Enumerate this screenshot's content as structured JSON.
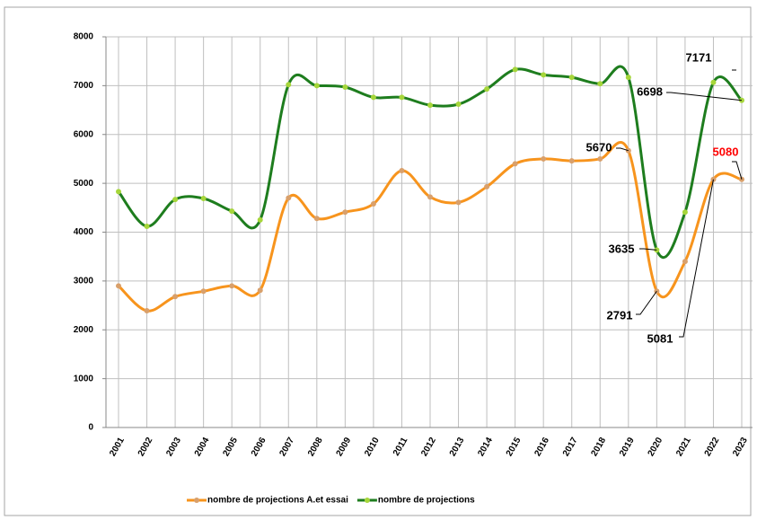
{
  "chart_data": {
    "type": "line",
    "categories": [
      "2001",
      "2002",
      "2003",
      "2004",
      "2005",
      "2006",
      "2007",
      "2008",
      "2009",
      "2010",
      "2011",
      "2012",
      "2013",
      "2014",
      "2015",
      "2016",
      "2017",
      "2018",
      "2019",
      "2020",
      "2021",
      "2022",
      "2023"
    ],
    "series": [
      {
        "name": "nombre de projections A.et essai",
        "color": "#f7941d",
        "values": [
          2900,
          2390,
          2680,
          2790,
          2900,
          2810,
          4700,
          4280,
          4410,
          4580,
          5260,
          4720,
          4610,
          4930,
          5400,
          5500,
          5460,
          5500,
          5670,
          2791,
          3400,
          5081,
          5080
        ]
      },
      {
        "name": "nombre de projections",
        "color": "#1e7d1e",
        "values": [
          4830,
          4120,
          4670,
          4690,
          4430,
          4250,
          7020,
          7000,
          6970,
          6760,
          6760,
          6600,
          6620,
          6930,
          7330,
          7220,
          7170,
          7040,
          7171,
          3635,
          4410,
          7066,
          6698
        ]
      }
    ],
    "ylim": [
      0,
      8000
    ],
    "yticks": [
      0,
      1000,
      2000,
      3000,
      4000,
      5000,
      6000,
      7000,
      8000
    ],
    "grid": true,
    "legend": "bottom"
  }
}
